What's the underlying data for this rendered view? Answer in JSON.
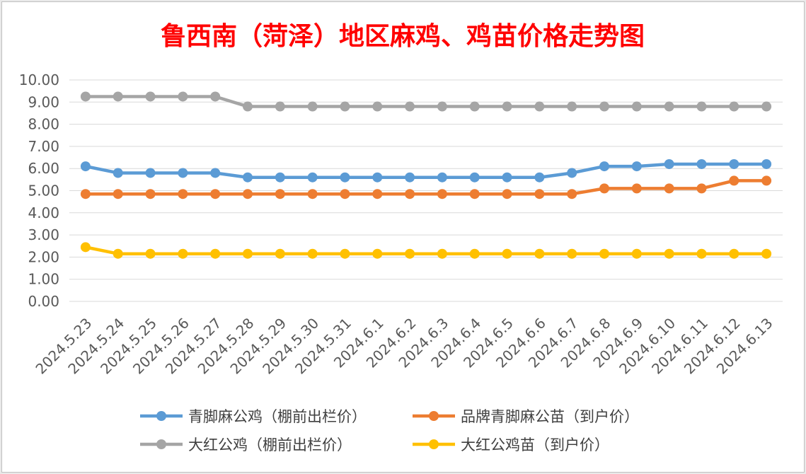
{
  "chart_data": {
    "type": "line",
    "title": "鲁西南（菏泽）地区麻鸡、鸡苗价格走势图",
    "xlabel": "",
    "ylabel": "",
    "ylim": [
      0,
      10
    ],
    "yticks": [
      "0.00",
      "1.00",
      "2.00",
      "3.00",
      "4.00",
      "5.00",
      "6.00",
      "7.00",
      "8.00",
      "9.00",
      "10.00"
    ],
    "grid": true,
    "legend_position": "bottom",
    "categories": [
      "2024.5.23",
      "2024.5.24",
      "2024.5.25",
      "2024.5.26",
      "2024.5.27",
      "2024.5.28",
      "2024.5.29",
      "2024.5.30",
      "2024.5.31",
      "2024.6.1",
      "2024.6.2",
      "2024.6.3",
      "2024.6.4",
      "2024.6.5",
      "2024.6.6",
      "2024.6.7",
      "2024.6.8",
      "2024.6.9",
      "2024.6.10",
      "2024.6.11",
      "2024.6.12",
      "2024.6.13"
    ],
    "series": [
      {
        "name": "青脚麻公鸡（棚前出栏价）",
        "color": "#5b9bd5",
        "values": [
          6.1,
          5.8,
          5.8,
          5.8,
          5.8,
          5.6,
          5.6,
          5.6,
          5.6,
          5.6,
          5.6,
          5.6,
          5.6,
          5.6,
          5.6,
          5.8,
          6.1,
          6.1,
          6.2,
          6.2,
          6.2,
          6.2
        ]
      },
      {
        "name": "品牌青脚麻公苗（到户价）",
        "color": "#ed7d31",
        "values": [
          4.85,
          4.85,
          4.85,
          4.85,
          4.85,
          4.85,
          4.85,
          4.85,
          4.85,
          4.85,
          4.85,
          4.85,
          4.85,
          4.85,
          4.85,
          4.85,
          5.1,
          5.1,
          5.1,
          5.1,
          5.45,
          5.45
        ]
      },
      {
        "name": "大红公鸡（棚前出栏价）",
        "color": "#a5a5a5",
        "values": [
          9.25,
          9.25,
          9.25,
          9.25,
          9.25,
          8.8,
          8.8,
          8.8,
          8.8,
          8.8,
          8.8,
          8.8,
          8.8,
          8.8,
          8.8,
          8.8,
          8.8,
          8.8,
          8.8,
          8.8,
          8.8,
          8.8
        ]
      },
      {
        "name": "大红公鸡苗（到户价）",
        "color": "#ffc000",
        "values": [
          2.45,
          2.15,
          2.15,
          2.15,
          2.15,
          2.15,
          2.15,
          2.15,
          2.15,
          2.15,
          2.15,
          2.15,
          2.15,
          2.15,
          2.15,
          2.15,
          2.15,
          2.15,
          2.15,
          2.15,
          2.15,
          2.15
        ]
      }
    ]
  }
}
